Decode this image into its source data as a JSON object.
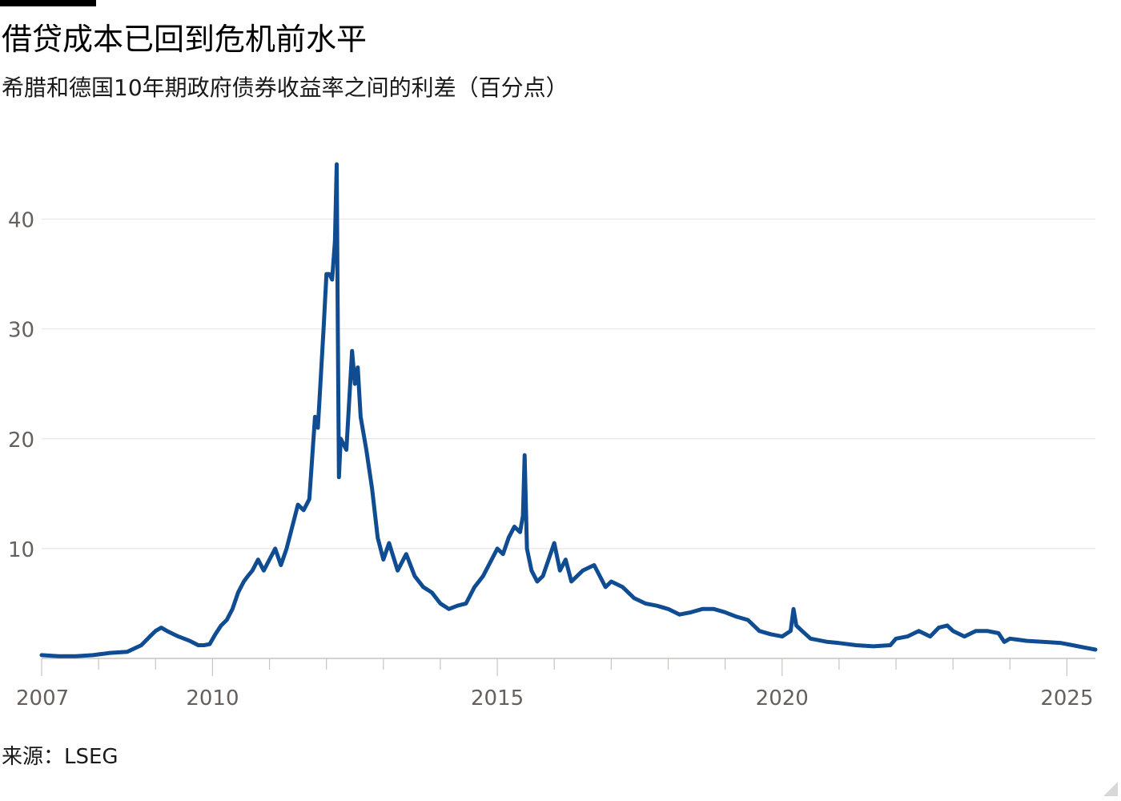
{
  "header": {
    "title": "借贷成本已回到危机前水平",
    "subtitle": "希腊和德国10年期政府债券收益率之间的利差（百分点）"
  },
  "footer": {
    "source": "来源：LSEG"
  },
  "chart_data": {
    "type": "line",
    "title": "借贷成本已回到危机前水平",
    "subtitle": "希腊和德国10年期政府债券收益率之间的利差（百分点）",
    "xlabel": "",
    "ylabel": "",
    "xlim": [
      2007.0,
      2025.5
    ],
    "ylim": [
      0,
      45
    ],
    "yticks": [
      10,
      20,
      30,
      40
    ],
    "xtick_labels": [
      "2007",
      "2010",
      "2015",
      "2020",
      "2025"
    ],
    "xticks": [
      2007,
      2010,
      2015,
      2020,
      2025
    ],
    "grid": true,
    "legend": "none",
    "colors": {
      "line": "#0f4c92",
      "grid": "#e9e6e3",
      "axis": "#c9c4bf",
      "tick_text": "#66605c"
    },
    "series": [
      {
        "x": [
          2007.0,
          2007.3,
          2007.6,
          2007.9,
          2008.2,
          2008.5,
          2008.75,
          2008.9,
          2009.0,
          2009.1,
          2009.2,
          2009.4,
          2009.6,
          2009.75,
          2009.85,
          2009.95,
          2010.05,
          2010.15,
          2010.25,
          2010.35,
          2010.45,
          2010.55,
          2010.62,
          2010.7,
          2010.8,
          2010.9,
          2011.0,
          2011.1,
          2011.2,
          2011.3,
          2011.4,
          2011.5,
          2011.6,
          2011.7,
          2011.8,
          2011.85,
          2011.95,
          2012.0,
          2012.05,
          2012.1,
          2012.15,
          2012.18,
          2012.2,
          2012.22,
          2012.25,
          2012.35,
          2012.45,
          2012.5,
          2012.55,
          2012.6,
          2012.7,
          2012.8,
          2012.9,
          2013.0,
          2013.1,
          2013.25,
          2013.4,
          2013.55,
          2013.7,
          2013.85,
          2014.0,
          2014.15,
          2014.3,
          2014.45,
          2014.6,
          2014.75,
          2014.9,
          2015.0,
          2015.1,
          2015.2,
          2015.3,
          2015.4,
          2015.45,
          2015.48,
          2015.52,
          2015.6,
          2015.7,
          2015.8,
          2015.9,
          2016.0,
          2016.1,
          2016.2,
          2016.3,
          2016.5,
          2016.7,
          2016.9,
          2017.0,
          2017.2,
          2017.4,
          2017.6,
          2017.8,
          2018.0,
          2018.2,
          2018.4,
          2018.6,
          2018.8,
          2019.0,
          2019.2,
          2019.4,
          2019.6,
          2019.8,
          2020.0,
          2020.15,
          2020.2,
          2020.25,
          2020.35,
          2020.5,
          2020.8,
          2021.0,
          2021.3,
          2021.6,
          2021.9,
          2022.0,
          2022.2,
          2022.4,
          2022.6,
          2022.75,
          2022.9,
          2023.0,
          2023.2,
          2023.4,
          2023.6,
          2023.8,
          2023.9,
          2024.0,
          2024.3,
          2024.6,
          2024.9,
          2025.1,
          2025.3,
          2025.5
        ],
        "values": [
          0.3,
          0.2,
          0.2,
          0.3,
          0.5,
          0.6,
          1.2,
          2.0,
          2.5,
          2.8,
          2.5,
          2.0,
          1.6,
          1.2,
          1.2,
          1.3,
          2.2,
          3.0,
          3.5,
          4.5,
          6.0,
          7.0,
          7.5,
          8.0,
          9.0,
          8.0,
          9.0,
          10.0,
          8.5,
          10.0,
          12.0,
          14.0,
          13.5,
          14.5,
          22.0,
          21.0,
          30.0,
          35.0,
          35.0,
          34.5,
          38.0,
          45.0,
          30.0,
          16.5,
          20.0,
          19.0,
          28.0,
          25.0,
          26.5,
          22.0,
          19.0,
          15.5,
          11.0,
          9.0,
          10.5,
          8.0,
          9.5,
          7.5,
          6.5,
          6.0,
          5.0,
          4.5,
          4.8,
          5.0,
          6.5,
          7.5,
          9.0,
          10.0,
          9.5,
          11.0,
          12.0,
          11.5,
          13.0,
          18.5,
          10.0,
          8.0,
          7.0,
          7.5,
          9.0,
          10.5,
          8.0,
          9.0,
          7.0,
          8.0,
          8.5,
          6.5,
          7.0,
          6.5,
          5.5,
          5.0,
          4.8,
          4.5,
          4.0,
          4.2,
          4.5,
          4.5,
          4.2,
          3.8,
          3.5,
          2.5,
          2.2,
          2.0,
          2.5,
          4.5,
          3.0,
          2.5,
          1.8,
          1.5,
          1.4,
          1.2,
          1.1,
          1.2,
          1.8,
          2.0,
          2.5,
          2.0,
          2.8,
          3.0,
          2.5,
          2.0,
          2.5,
          2.5,
          2.3,
          1.5,
          1.8,
          1.6,
          1.5,
          1.4,
          1.2,
          1.0,
          0.8
        ]
      }
    ]
  }
}
